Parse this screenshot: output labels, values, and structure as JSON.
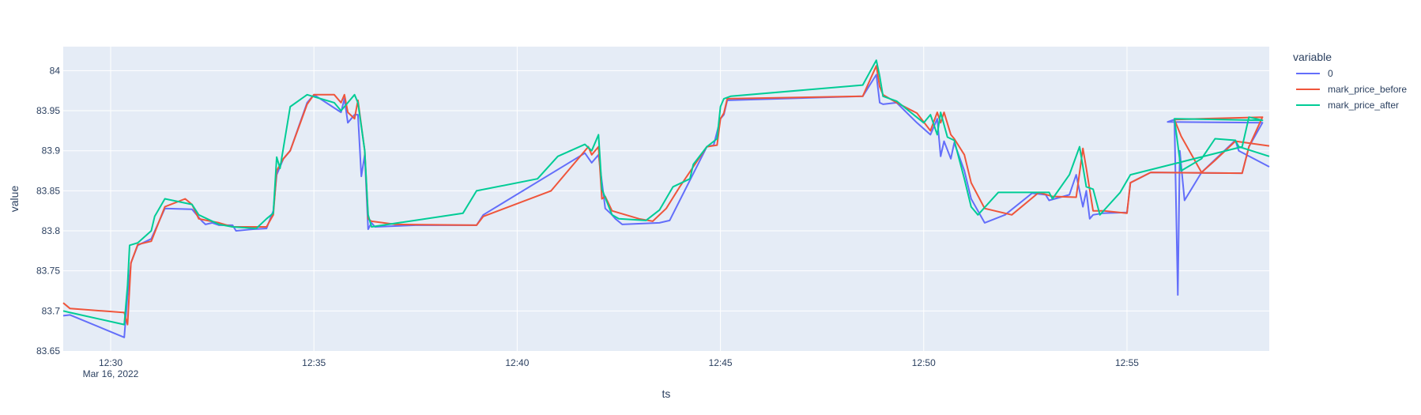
{
  "chart_data": {
    "type": "line",
    "xlabel": "ts",
    "ylabel": "value",
    "xlim": [
      "12:28:50",
      "12:58:30"
    ],
    "ylim": [
      83.65,
      84.03
    ],
    "grid": true,
    "legend_placement": "top-right",
    "legend_title": "variable",
    "x_ticks": [
      {
        "label": "12:30",
        "value": "12:30:00",
        "sublabel": "Mar 16, 2022"
      },
      {
        "label": "12:35",
        "value": "12:35:00"
      },
      {
        "label": "12:40",
        "value": "12:40:00"
      },
      {
        "label": "12:45",
        "value": "12:45:00"
      },
      {
        "label": "12:50",
        "value": "12:50:00"
      },
      {
        "label": "12:55",
        "value": "12:55:00"
      }
    ],
    "y_ticks": [
      {
        "label": "83.65",
        "value": 83.65
      },
      {
        "label": "83.7",
        "value": 83.7
      },
      {
        "label": "83.75",
        "value": 83.75
      },
      {
        "label": "83.8",
        "value": 83.8
      },
      {
        "label": "83.85",
        "value": 83.85
      },
      {
        "label": "83.9",
        "value": 83.9
      },
      {
        "label": "83.95",
        "value": 83.95
      },
      {
        "label": "84",
        "value": 84.0
      }
    ],
    "series": [
      {
        "name": "0",
        "color": "#636efa",
        "points": [
          [
            "12:28:50",
            83.694
          ],
          [
            "12:29:00",
            83.695
          ],
          [
            "12:30:20",
            83.667
          ],
          [
            "12:30:25",
            83.72
          ],
          [
            "12:30:30",
            83.76
          ],
          [
            "12:30:40",
            83.782
          ],
          [
            "12:31:00",
            83.79
          ],
          [
            "12:31:20",
            83.828
          ],
          [
            "12:32:00",
            83.827
          ],
          [
            "12:32:15",
            83.812
          ],
          [
            "12:32:20",
            83.808
          ],
          [
            "12:32:30",
            83.81
          ],
          [
            "12:32:40",
            83.807
          ],
          [
            "12:33:00",
            83.807
          ],
          [
            "12:33:05",
            83.8
          ],
          [
            "12:33:30",
            83.802
          ],
          [
            "12:33:50",
            83.803
          ],
          [
            "12:34:00",
            83.825
          ],
          [
            "12:34:05",
            83.87
          ],
          [
            "12:34:15",
            83.89
          ],
          [
            "12:34:25",
            83.9
          ],
          [
            "12:34:50",
            83.96
          ],
          [
            "12:35:00",
            83.97
          ],
          [
            "12:35:40",
            83.948
          ],
          [
            "12:35:45",
            83.965
          ],
          [
            "12:35:50",
            83.935
          ],
          [
            "12:36:00",
            83.945
          ],
          [
            "12:36:05",
            83.945
          ],
          [
            "12:36:10",
            83.868
          ],
          [
            "12:36:15",
            83.895
          ],
          [
            "12:36:20",
            83.802
          ],
          [
            "12:36:25",
            83.81
          ],
          [
            "12:36:30",
            83.805
          ],
          [
            "12:37:30",
            83.807
          ],
          [
            "12:39:00",
            83.807
          ],
          [
            "12:39:10",
            83.82
          ],
          [
            "12:41:40",
            83.897
          ],
          [
            "12:41:50",
            83.885
          ],
          [
            "12:42:00",
            83.895
          ],
          [
            "12:42:10",
            83.828
          ],
          [
            "12:42:20",
            83.82
          ],
          [
            "12:42:25",
            83.815
          ],
          [
            "12:42:35",
            83.808
          ],
          [
            "12:43:30",
            83.81
          ],
          [
            "12:43:45",
            83.813
          ],
          [
            "12:44:40",
            83.905
          ],
          [
            "12:44:50",
            83.907
          ],
          [
            "12:45:00",
            83.94
          ],
          [
            "12:45:05",
            83.945
          ],
          [
            "12:45:10",
            83.963
          ],
          [
            "12:48:30",
            83.968
          ],
          [
            "12:48:50",
            83.995
          ],
          [
            "12:48:55",
            83.96
          ],
          [
            "12:49:00",
            83.958
          ],
          [
            "12:49:20",
            83.96
          ],
          [
            "12:49:50",
            83.935
          ],
          [
            "12:50:10",
            83.92
          ],
          [
            "12:50:20",
            83.94
          ],
          [
            "12:50:25",
            83.893
          ],
          [
            "12:50:30",
            83.912
          ],
          [
            "12:50:40",
            83.89
          ],
          [
            "12:50:45",
            83.91
          ],
          [
            "12:51:00",
            83.875
          ],
          [
            "12:51:10",
            83.84
          ],
          [
            "12:51:30",
            83.81
          ],
          [
            "12:52:00",
            83.82
          ],
          [
            "12:52:40",
            83.847
          ],
          [
            "12:53:00",
            83.845
          ],
          [
            "12:53:05",
            83.838
          ],
          [
            "12:53:35",
            83.845
          ],
          [
            "12:53:45",
            83.87
          ],
          [
            "12:53:55",
            83.83
          ],
          [
            "12:54:00",
            83.85
          ],
          [
            "12:54:05",
            83.815
          ],
          [
            "12:54:10",
            83.82
          ],
          [
            "12:54:25",
            83.822
          ],
          [
            "12:55:00",
            83.823
          ],
          [
            "12:55:05",
            83.86
          ],
          [
            "12:55:35",
            83.873
          ],
          [
            "12:57:50",
            83.872
          ],
          [
            "12:58:00",
            83.905
          ],
          [
            "12:58:20",
            83.935
          ],
          [
            "12:56:00",
            83.936
          ],
          [
            "12:56:10",
            83.939
          ],
          [
            "12:56:15",
            83.72
          ],
          [
            "12:56:18",
            83.9
          ],
          [
            "12:56:25",
            83.838
          ],
          [
            "12:56:50",
            83.873
          ],
          [
            "12:57:40",
            83.913
          ],
          [
            "12:57:45",
            83.9
          ],
          [
            "12:58:30",
            83.88
          ]
        ]
      },
      {
        "name": "mark_price_before",
        "color": "#ef553b",
        "points": [
          [
            "12:28:50",
            83.71
          ],
          [
            "12:29:00",
            83.703
          ],
          [
            "12:30:20",
            83.698
          ],
          [
            "12:30:25",
            83.683
          ],
          [
            "12:30:30",
            83.76
          ],
          [
            "12:30:40",
            83.783
          ],
          [
            "12:31:00",
            83.787
          ],
          [
            "12:31:20",
            83.83
          ],
          [
            "12:31:50",
            83.84
          ],
          [
            "12:32:00",
            83.833
          ],
          [
            "12:32:10",
            83.815
          ],
          [
            "12:32:40",
            83.81
          ],
          [
            "12:33:00",
            83.805
          ],
          [
            "12:33:50",
            83.805
          ],
          [
            "12:34:00",
            83.82
          ],
          [
            "12:34:05",
            83.875
          ],
          [
            "12:34:15",
            83.89
          ],
          [
            "12:34:25",
            83.9
          ],
          [
            "12:34:50",
            83.958
          ],
          [
            "12:35:00",
            83.97
          ],
          [
            "12:35:30",
            83.97
          ],
          [
            "12:35:40",
            83.96
          ],
          [
            "12:35:45",
            83.97
          ],
          [
            "12:35:50",
            83.948
          ],
          [
            "12:36:00",
            83.94
          ],
          [
            "12:36:05",
            83.963
          ],
          [
            "12:36:15",
            83.9
          ],
          [
            "12:36:20",
            83.815
          ],
          [
            "12:36:25",
            83.812
          ],
          [
            "12:37:00",
            83.808
          ],
          [
            "12:39:00",
            83.807
          ],
          [
            "12:39:10",
            83.818
          ],
          [
            "12:40:50",
            83.85
          ],
          [
            "12:41:45",
            83.905
          ],
          [
            "12:41:50",
            83.895
          ],
          [
            "12:42:00",
            83.905
          ],
          [
            "12:42:05",
            83.84
          ],
          [
            "12:42:10",
            83.843
          ],
          [
            "12:42:20",
            83.825
          ],
          [
            "12:43:00",
            83.815
          ],
          [
            "12:43:20",
            83.812
          ],
          [
            "12:43:40",
            83.828
          ],
          [
            "12:44:00",
            83.855
          ],
          [
            "12:44:40",
            83.905
          ],
          [
            "12:44:55",
            83.907
          ],
          [
            "12:45:00",
            83.94
          ],
          [
            "12:45:05",
            83.947
          ],
          [
            "12:45:10",
            83.965
          ],
          [
            "12:48:30",
            83.968
          ],
          [
            "12:48:50",
            84.006
          ],
          [
            "12:48:55",
            83.98
          ],
          [
            "12:49:00",
            83.97
          ],
          [
            "12:49:20",
            83.96
          ],
          [
            "12:49:50",
            83.947
          ],
          [
            "12:50:10",
            83.925
          ],
          [
            "12:50:20",
            83.948
          ],
          [
            "12:50:25",
            83.935
          ],
          [
            "12:50:30",
            83.948
          ],
          [
            "12:50:40",
            83.92
          ],
          [
            "12:50:45",
            83.915
          ],
          [
            "12:51:00",
            83.895
          ],
          [
            "12:51:10",
            83.86
          ],
          [
            "12:51:30",
            83.828
          ],
          [
            "12:52:10",
            83.82
          ],
          [
            "12:52:50",
            83.848
          ],
          [
            "12:53:10",
            83.843
          ],
          [
            "12:53:45",
            83.842
          ],
          [
            "12:53:55",
            83.903
          ],
          [
            "12:54:00",
            83.878
          ],
          [
            "12:54:10",
            83.825
          ],
          [
            "12:54:25",
            83.825
          ],
          [
            "12:55:00",
            83.822
          ],
          [
            "12:55:05",
            83.86
          ],
          [
            "12:55:35",
            83.873
          ],
          [
            "12:57:50",
            83.872
          ],
          [
            "12:58:00",
            83.905
          ],
          [
            "12:58:20",
            83.942
          ],
          [
            "12:56:10",
            83.939
          ],
          [
            "12:56:20",
            83.918
          ],
          [
            "12:56:50",
            83.873
          ],
          [
            "12:57:10",
            83.888
          ],
          [
            "12:57:40",
            83.912
          ],
          [
            "12:58:30",
            83.906
          ]
        ]
      },
      {
        "name": "mark_price_after",
        "color": "#00cc96",
        "points": [
          [
            "12:28:50",
            83.7
          ],
          [
            "12:29:00",
            83.698
          ],
          [
            "12:30:20",
            83.683
          ],
          [
            "12:30:25",
            83.732
          ],
          [
            "12:30:28",
            83.782
          ],
          [
            "12:30:40",
            83.785
          ],
          [
            "12:31:00",
            83.8
          ],
          [
            "12:31:05",
            83.818
          ],
          [
            "12:31:20",
            83.84
          ],
          [
            "12:32:00",
            83.833
          ],
          [
            "12:32:10",
            83.82
          ],
          [
            "12:32:40",
            83.808
          ],
          [
            "12:33:00",
            83.805
          ],
          [
            "12:33:35",
            83.803
          ],
          [
            "12:33:50",
            83.815
          ],
          [
            "12:34:00",
            83.822
          ],
          [
            "12:34:05",
            83.892
          ],
          [
            "12:34:10",
            83.878
          ],
          [
            "12:34:25",
            83.955
          ],
          [
            "12:34:50",
            83.97
          ],
          [
            "12:35:30",
            83.96
          ],
          [
            "12:35:40",
            83.95
          ],
          [
            "12:35:50",
            83.96
          ],
          [
            "12:36:00",
            83.97
          ],
          [
            "12:36:05",
            83.96
          ],
          [
            "12:36:15",
            83.9
          ],
          [
            "12:36:20",
            83.82
          ],
          [
            "12:36:25",
            83.805
          ],
          [
            "12:38:40",
            83.822
          ],
          [
            "12:39:00",
            83.85
          ],
          [
            "12:40:30",
            83.865
          ],
          [
            "12:41:00",
            83.893
          ],
          [
            "12:41:40",
            83.908
          ],
          [
            "12:41:50",
            83.9
          ],
          [
            "12:42:00",
            83.92
          ],
          [
            "12:42:05",
            83.852
          ],
          [
            "12:42:20",
            83.82
          ],
          [
            "12:42:30",
            83.815
          ],
          [
            "12:43:10",
            83.813
          ],
          [
            "12:43:30",
            83.826
          ],
          [
            "12:43:50",
            83.855
          ],
          [
            "12:44:15",
            83.865
          ],
          [
            "12:44:20",
            83.883
          ],
          [
            "12:44:40",
            83.905
          ],
          [
            "12:44:55",
            83.915
          ],
          [
            "12:45:00",
            83.955
          ],
          [
            "12:45:05",
            83.965
          ],
          [
            "12:45:15",
            83.968
          ],
          [
            "12:48:30",
            83.982
          ],
          [
            "12:48:50",
            84.013
          ],
          [
            "12:48:55",
            83.993
          ],
          [
            "12:49:00",
            83.968
          ],
          [
            "12:49:20",
            83.962
          ],
          [
            "12:50:00",
            83.935
          ],
          [
            "12:50:10",
            83.945
          ],
          [
            "12:50:20",
            83.92
          ],
          [
            "12:50:25",
            83.948
          ],
          [
            "12:50:35",
            83.917
          ],
          [
            "12:50:45",
            83.913
          ],
          [
            "12:51:00",
            83.865
          ],
          [
            "12:51:10",
            83.83
          ],
          [
            "12:51:20",
            83.82
          ],
          [
            "12:51:50",
            83.848
          ],
          [
            "12:52:30",
            83.848
          ],
          [
            "12:53:05",
            83.848
          ],
          [
            "12:53:10",
            83.84
          ],
          [
            "12:53:35",
            83.87
          ],
          [
            "12:53:50",
            83.905
          ],
          [
            "12:54:00",
            83.855
          ],
          [
            "12:54:10",
            83.852
          ],
          [
            "12:54:20",
            83.82
          ],
          [
            "12:54:50",
            83.848
          ],
          [
            "12:55:05",
            83.87
          ],
          [
            "12:57:50",
            83.905
          ],
          [
            "12:58:00",
            83.942
          ],
          [
            "12:58:20",
            83.938
          ],
          [
            "12:56:10",
            83.94
          ],
          [
            "12:56:20",
            83.875
          ],
          [
            "12:56:50",
            83.89
          ],
          [
            "12:57:10",
            83.915
          ],
          [
            "12:57:40",
            83.913
          ],
          [
            "12:57:45",
            83.905
          ],
          [
            "12:58:30",
            83.893
          ]
        ]
      }
    ]
  }
}
